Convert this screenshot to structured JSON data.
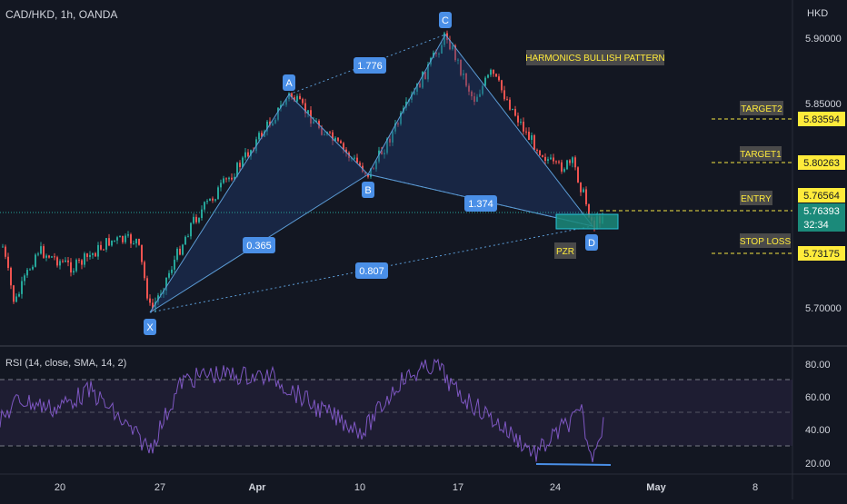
{
  "header": {
    "symbol_title": "CAD/HKD, 1h, OANDA",
    "currency": "HKD"
  },
  "price_axis": {
    "ticks": [
      "5.90000",
      "5.85000",
      "5.70000"
    ]
  },
  "pattern": {
    "title": "HARMONICS BULLISH PATTERN",
    "points": [
      "X",
      "A",
      "B",
      "C",
      "D"
    ],
    "ratios": {
      "ab_xa": "0.365",
      "bc": "1.776",
      "cd": "1.374",
      "xb": "0.807"
    },
    "prz_label": "PZR",
    "colors": {
      "fill": "#1e3a6e",
      "line": "#5b9bd5",
      "label_bg": "#4a8fe7"
    }
  },
  "levels": [
    {
      "name": "TARGET2",
      "price": "5.83594"
    },
    {
      "name": "TARGET1",
      "price": "5.80263"
    },
    {
      "name": "ENTRY",
      "price": "5.76564"
    },
    {
      "name": "STOP LOSS",
      "price": "5.73175"
    }
  ],
  "current_price": {
    "price": "5.76393",
    "countdown": "32:34",
    "color": "#1b8a7a"
  },
  "rsi": {
    "title": "RSI (14, close, SMA, 14, 2)",
    "ticks": [
      "80.00",
      "60.00",
      "40.00",
      "20.00"
    ],
    "line_color": "#7e57c2"
  },
  "time_axis": {
    "labels": [
      "20",
      "27",
      "Apr",
      "10",
      "17",
      "24",
      "May",
      "8"
    ]
  },
  "colors": {
    "background": "#131722",
    "up_candle": "#26a69a",
    "down_candle": "#ef5350",
    "level_line": "#f5e642",
    "label_yellow": "#ffeb3b",
    "label_gray": "#4a4a4a"
  }
}
